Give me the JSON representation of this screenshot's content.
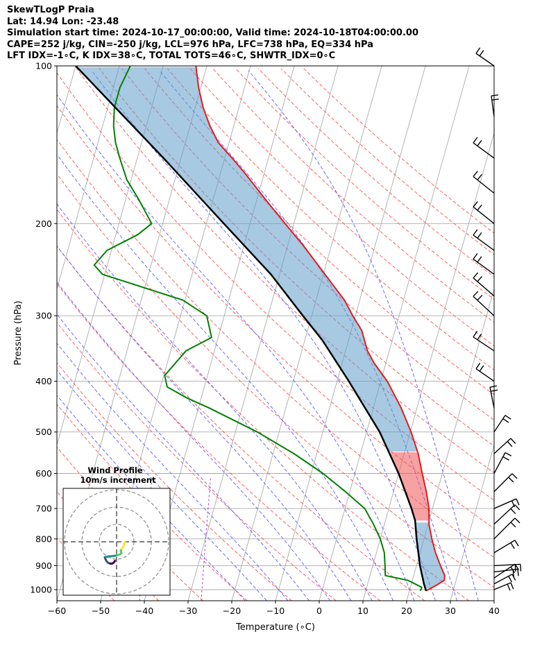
{
  "header": {
    "line1": "SkewTLogP Praia",
    "line2": "Lat: 14.94   Lon: -23.48",
    "line3": "Simulation start time: 2024-10-17_00:00:00, Valid time: 2024-10-18T04:00:00.00",
    "line4": "CAPE=252 j/kg, CIN=-250 j/kg, LCL=976 hPa, LFC=738 hPa, EQ=334 hPa",
    "line5": "LFT IDX=-1∘C, K IDX=38∘C, TOTAL TOTS=46∘C, SHWTR_IDX=0∘C"
  },
  "chart_data": {
    "type": "line",
    "title": "SkewTLogP Praia",
    "xlabel": "Temperature (∘C)",
    "ylabel": "Pressure (hPa)",
    "xlim": [
      -60,
      40
    ],
    "ylim": [
      1050,
      100
    ],
    "y_scale": "log",
    "x_ticks": [
      -60,
      -50,
      -40,
      -30,
      -20,
      -10,
      0,
      10,
      20,
      30,
      40
    ],
    "x_tick_labels": [
      "−60",
      "−50",
      "−40",
      "−30",
      "−20",
      "−10",
      "0",
      "10",
      "20",
      "30",
      "40"
    ],
    "y_ticks": [
      1000,
      900,
      800,
      700,
      600,
      500,
      400,
      300,
      200,
      100
    ],
    "y_tick_labels": [
      "1000",
      "900",
      "800",
      "700",
      "600",
      "500",
      "400",
      "300",
      "200",
      "100"
    ],
    "skew": 35,
    "grid": true,
    "series": [
      {
        "name": "temperature",
        "color": "#e41a1c",
        "points": [
          [
            1005,
            23.8
          ],
          [
            985,
            25.5
          ],
          [
            960,
            27.3
          ],
          [
            940,
            27.1
          ],
          [
            900,
            25.5
          ],
          [
            850,
            23.5
          ],
          [
            800,
            21.8
          ],
          [
            750,
            20.2
          ],
          [
            700,
            19.2
          ],
          [
            650,
            17.5
          ],
          [
            600,
            15.4
          ],
          [
            550,
            13.2
          ],
          [
            500,
            10.2
          ],
          [
            450,
            6.4
          ],
          [
            400,
            1.5
          ],
          [
            370,
            -2.6
          ],
          [
            350,
            -5.0
          ],
          [
            320,
            -7.6
          ],
          [
            300,
            -10.6
          ],
          [
            280,
            -13.5
          ],
          [
            260,
            -17.5
          ],
          [
            240,
            -21.8
          ],
          [
            220,
            -26.5
          ],
          [
            200,
            -32.0
          ],
          [
            180,
            -38.0
          ],
          [
            160,
            -44.5
          ],
          [
            150,
            -48.3
          ],
          [
            140,
            -52.5
          ],
          [
            130,
            -55.5
          ],
          [
            120,
            -58.2
          ],
          [
            110,
            -60.5
          ],
          [
            100,
            -62.5
          ]
        ]
      },
      {
        "name": "dewpoint",
        "color": "#008000",
        "points": [
          [
            1005,
            22.5
          ],
          [
            990,
            22.6
          ],
          [
            960,
            19.0
          ],
          [
            940,
            13.5
          ],
          [
            900,
            12.8
          ],
          [
            850,
            11.8
          ],
          [
            800,
            10.0
          ],
          [
            750,
            7.5
          ],
          [
            700,
            4.5
          ],
          [
            650,
            -1.0
          ],
          [
            600,
            -7.3
          ],
          [
            550,
            -15.2
          ],
          [
            500,
            -25.0
          ],
          [
            450,
            -37.5
          ],
          [
            430,
            -43.4
          ],
          [
            410,
            -48.5
          ],
          [
            390,
            -49.8
          ],
          [
            350,
            -46.5
          ],
          [
            330,
            -41.5
          ],
          [
            300,
            -44.0
          ],
          [
            280,
            -50.5
          ],
          [
            250,
            -70.5
          ],
          [
            240,
            -73.0
          ],
          [
            225,
            -71.0
          ],
          [
            210,
            -65.0
          ],
          [
            200,
            -62.5
          ],
          [
            180,
            -67.0
          ],
          [
            165,
            -71.0
          ],
          [
            150,
            -74.0
          ],
          [
            140,
            -76.0
          ],
          [
            130,
            -77.5
          ],
          [
            120,
            -78.5
          ],
          [
            110,
            -78.5
          ],
          [
            100,
            -77.5
          ]
        ]
      },
      {
        "name": "parcel",
        "color": "#000000",
        "points": [
          [
            1005,
            23.8
          ],
          [
            976,
            22.9
          ],
          [
            900,
            20.8
          ],
          [
            800,
            18.3
          ],
          [
            738,
            16.8
          ],
          [
            700,
            15.2
          ],
          [
            600,
            10.0
          ],
          [
            500,
            3.0
          ],
          [
            400,
            -7.3
          ],
          [
            334,
            -16.0
          ],
          [
            300,
            -22.0
          ],
          [
            250,
            -32.0
          ],
          [
            200,
            -46.0
          ],
          [
            150,
            -64.0
          ],
          [
            100,
            -90.0
          ]
        ]
      }
    ],
    "wind_barbs": {
      "pressures": [
        1000,
        975,
        950,
        925,
        900,
        850,
        800,
        750,
        700,
        650,
        600,
        550,
        500,
        450,
        400,
        350,
        300,
        275,
        250,
        225,
        200,
        175,
        150,
        125,
        100
      ]
    },
    "hodograph": {
      "title": "Wind Profile",
      "subtitle": "10m/s increment",
      "ring_increment_ms": 10,
      "points": [
        [
          -1.0,
          -1.0
        ],
        [
          -1.6,
          -2.0
        ],
        [
          -2.4,
          -2.5
        ],
        [
          -3.5,
          -2.6
        ],
        [
          -4.8,
          -2.2
        ],
        [
          -5.8,
          -1.2
        ],
        [
          -6.5,
          0.2
        ],
        [
          -6.8,
          1.0
        ],
        [
          -6.0,
          1.3
        ],
        [
          -4.5,
          1.6
        ],
        [
          -2.8,
          1.7
        ],
        [
          -1.2,
          1.9
        ],
        [
          0.5,
          2.2
        ],
        [
          2.0,
          2.8
        ],
        [
          2.8,
          3.5
        ],
        [
          2.4,
          4.8
        ],
        [
          3.0,
          6.0
        ],
        [
          3.8,
          7.0
        ],
        [
          4.2,
          8.0
        ],
        [
          4.5,
          9.0
        ],
        [
          4.8,
          10.0
        ]
      ]
    }
  }
}
